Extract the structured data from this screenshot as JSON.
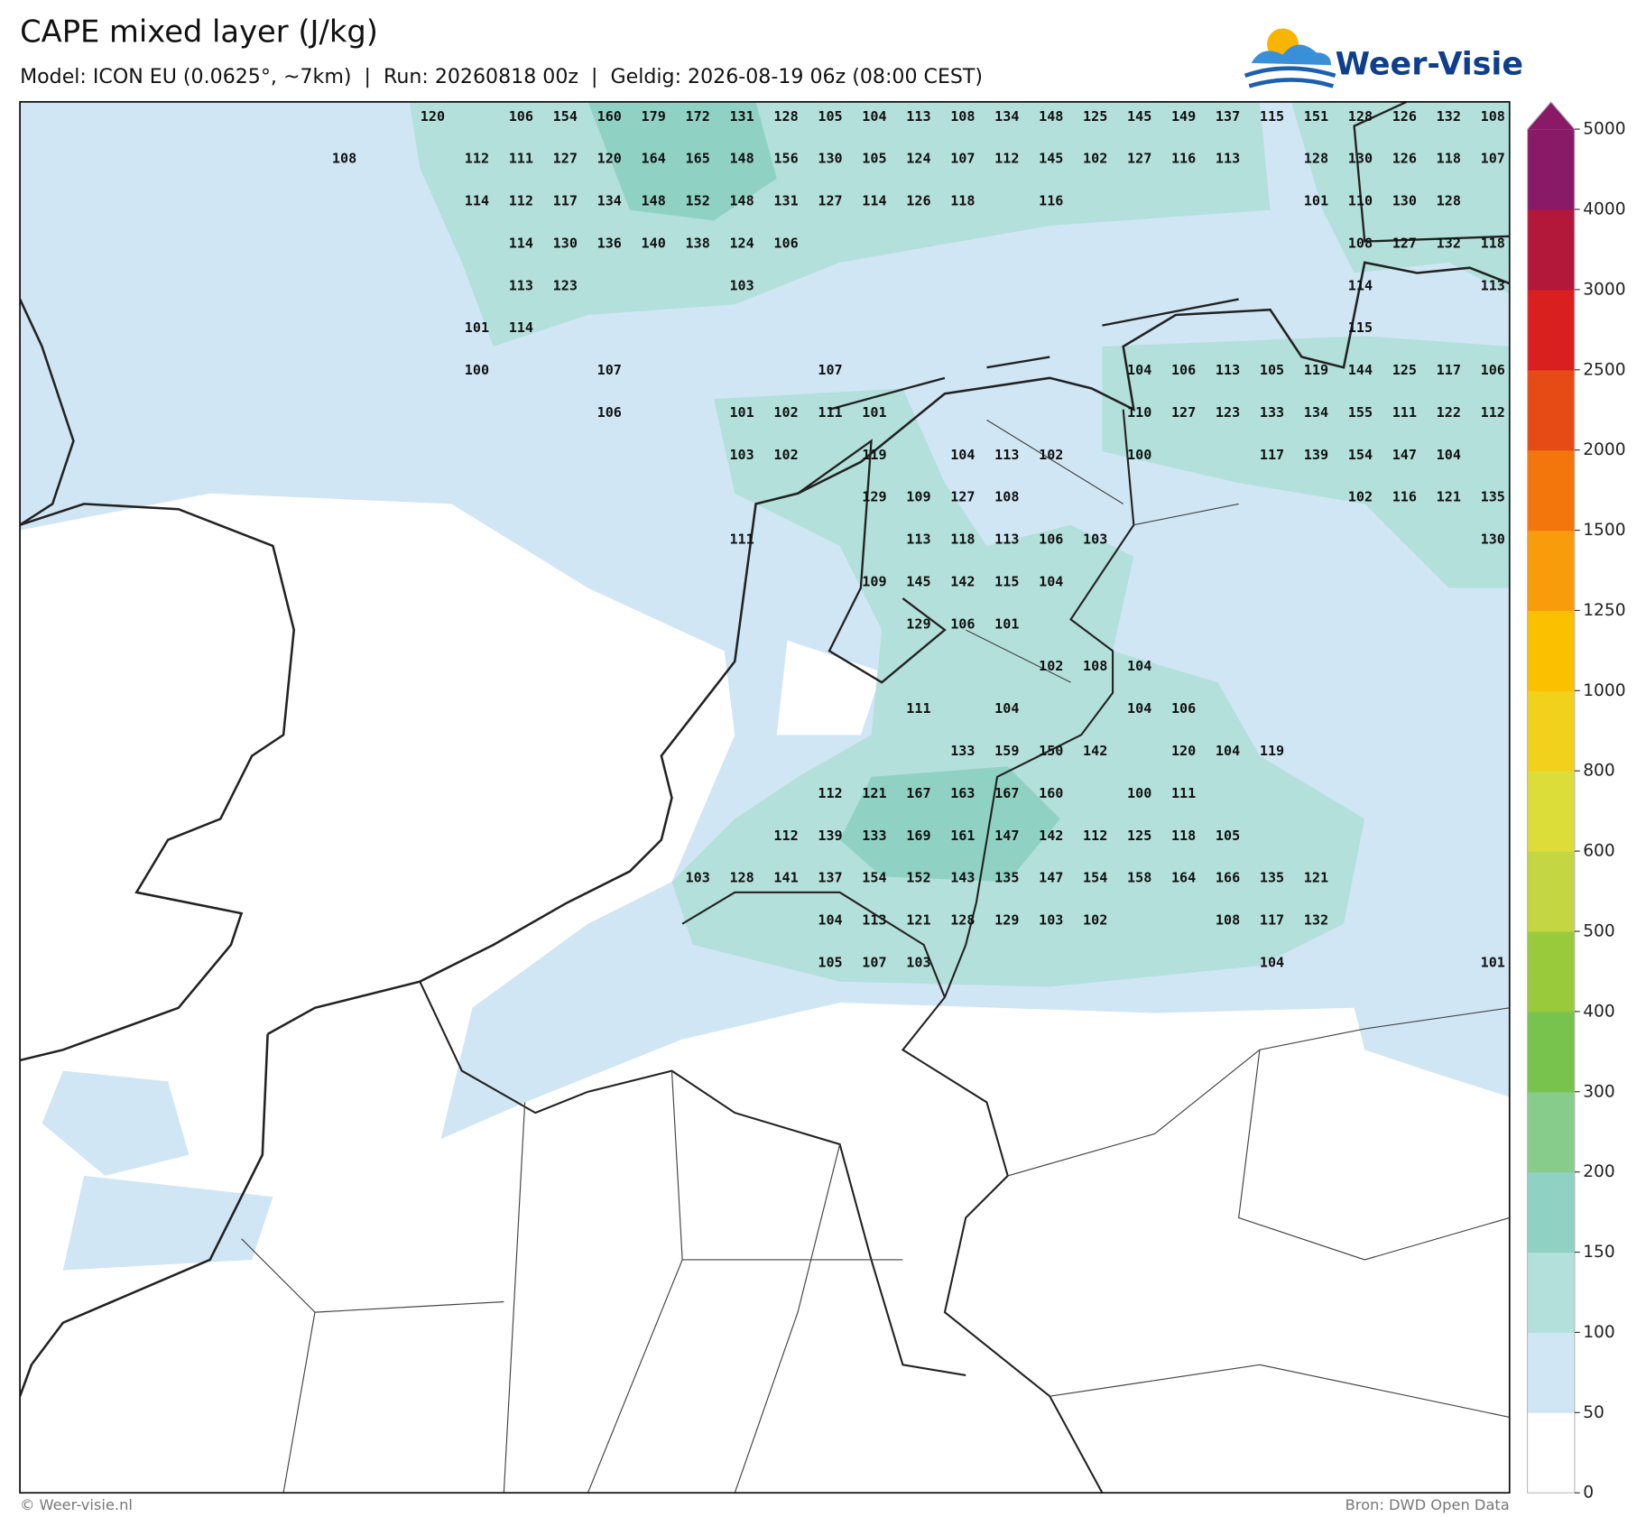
{
  "header": {
    "title": "CAPE mixed layer (J/kg)",
    "subtitle": "Model: ICON EU (0.0625°, ~7km)  |  Run: 20260818 00z  |  Geldig: 2026-08-19 06z (08:00 CEST)",
    "logo": "Weer-Visie"
  },
  "footer": {
    "left": "© Weer-visie.nl",
    "right": "Bron: DWD Open Data"
  },
  "colorbar": {
    "levels": [
      0,
      50,
      100,
      150,
      200,
      300,
      400,
      500,
      600,
      800,
      1000,
      1250,
      1500,
      2000,
      2500,
      3000,
      4000,
      5000
    ],
    "colors": [
      "#ffffff",
      "#d0e6f5",
      "#b3e0db",
      "#8fd2c4",
      "#88cc8c",
      "#78c34e",
      "#99ca3c",
      "#c4d641",
      "#dddd3a",
      "#f1d11c",
      "#fbc000",
      "#f99c0c",
      "#f3760c",
      "#e64b15",
      "#da1f1f",
      "#b3183b",
      "#891a67"
    ]
  },
  "grid_labels": [
    [
      null,
      null,
      120,
      null,
      106,
      154,
      160,
      179,
      172,
      131,
      128,
      105,
      104,
      113,
      108,
      134,
      148,
      125,
      145,
      149,
      137,
      115,
      151,
      128,
      126,
      132,
      108
    ],
    [
      108,
      null,
      null,
      112,
      111,
      127,
      120,
      164,
      165,
      148,
      156,
      130,
      105,
      124,
      107,
      112,
      145,
      102,
      127,
      116,
      113,
      null,
      128,
      130,
      126,
      118,
      107
    ],
    [
      null,
      null,
      null,
      114,
      112,
      117,
      134,
      148,
      152,
      148,
      131,
      127,
      114,
      126,
      118,
      null,
      116,
      null,
      null,
      null,
      null,
      null,
      101,
      110,
      130,
      128,
      null
    ],
    [
      null,
      null,
      null,
      null,
      114,
      130,
      136,
      140,
      138,
      124,
      106,
      null,
      null,
      null,
      null,
      null,
      null,
      null,
      null,
      null,
      null,
      null,
      null,
      108,
      127,
      132,
      118
    ],
    [
      null,
      null,
      null,
      null,
      113,
      123,
      null,
      null,
      null,
      103,
      null,
      null,
      null,
      null,
      null,
      null,
      null,
      null,
      null,
      null,
      null,
      null,
      null,
      114,
      null,
      null,
      113
    ],
    [
      null,
      null,
      null,
      101,
      114,
      null,
      null,
      null,
      null,
      null,
      null,
      null,
      null,
      null,
      null,
      null,
      null,
      null,
      null,
      null,
      null,
      null,
      null,
      115,
      null,
      null,
      null
    ],
    [
      null,
      null,
      null,
      100,
      null,
      null,
      107,
      null,
      null,
      null,
      null,
      107,
      null,
      null,
      null,
      null,
      null,
      null,
      104,
      106,
      113,
      105,
      119,
      144,
      125,
      117,
      106
    ],
    [
      null,
      null,
      null,
      null,
      null,
      null,
      106,
      null,
      null,
      101,
      102,
      111,
      101,
      null,
      null,
      null,
      null,
      null,
      110,
      127,
      123,
      133,
      134,
      155,
      111,
      122,
      112
    ],
    [
      null,
      null,
      null,
      null,
      null,
      null,
      null,
      null,
      null,
      103,
      102,
      null,
      119,
      null,
      104,
      113,
      102,
      null,
      100,
      null,
      null,
      117,
      139,
      154,
      147,
      104,
      null
    ],
    [
      null,
      null,
      null,
      null,
      null,
      null,
      null,
      null,
      null,
      null,
      null,
      null,
      129,
      109,
      127,
      108,
      null,
      null,
      null,
      null,
      null,
      null,
      null,
      102,
      116,
      121,
      135
    ],
    [
      null,
      null,
      null,
      null,
      null,
      null,
      null,
      null,
      null,
      111,
      null,
      null,
      null,
      113,
      118,
      113,
      106,
      103,
      null,
      null,
      null,
      null,
      null,
      null,
      null,
      null,
      130
    ],
    [
      null,
      null,
      null,
      null,
      null,
      null,
      null,
      null,
      null,
      null,
      null,
      null,
      109,
      145,
      142,
      115,
      104,
      null,
      null,
      null,
      null,
      null,
      null,
      null,
      null,
      null,
      null
    ],
    [
      null,
      null,
      null,
      null,
      null,
      null,
      null,
      null,
      null,
      null,
      null,
      null,
      null,
      129,
      106,
      101,
      null,
      null,
      null,
      null,
      null,
      null,
      null,
      null,
      null,
      null,
      null
    ],
    [
      null,
      null,
      null,
      null,
      null,
      null,
      null,
      null,
      null,
      null,
      null,
      null,
      null,
      null,
      null,
      null,
      102,
      108,
      104,
      null,
      null,
      null,
      null,
      null,
      null,
      null,
      null
    ],
    [
      null,
      null,
      null,
      null,
      null,
      null,
      null,
      null,
      null,
      null,
      null,
      null,
      null,
      111,
      null,
      104,
      null,
      null,
      104,
      106,
      null,
      null,
      null,
      null,
      null,
      null,
      null
    ],
    [
      null,
      null,
      null,
      null,
      null,
      null,
      null,
      null,
      null,
      null,
      null,
      null,
      null,
      null,
      133,
      159,
      150,
      142,
      null,
      120,
      104,
      119,
      null,
      null,
      null,
      null,
      null
    ],
    [
      null,
      null,
      null,
      null,
      null,
      null,
      null,
      null,
      null,
      null,
      null,
      112,
      121,
      167,
      163,
      167,
      160,
      null,
      100,
      111,
      null,
      null,
      null,
      null,
      null,
      null,
      null
    ],
    [
      null,
      null,
      null,
      null,
      null,
      null,
      null,
      null,
      null,
      null,
      112,
      139,
      133,
      169,
      161,
      147,
      142,
      112,
      125,
      118,
      105,
      null,
      null,
      null,
      null,
      null,
      null
    ],
    [
      null,
      null,
      null,
      null,
      null,
      null,
      null,
      null,
      103,
      128,
      141,
      137,
      154,
      152,
      143,
      135,
      147,
      154,
      158,
      164,
      166,
      135,
      121,
      null,
      null,
      null,
      null
    ],
    [
      null,
      null,
      null,
      null,
      null,
      null,
      null,
      null,
      null,
      null,
      null,
      104,
      113,
      121,
      128,
      129,
      103,
      102,
      null,
      null,
      108,
      117,
      132,
      null,
      null,
      null,
      null
    ],
    [
      null,
      null,
      null,
      null,
      null,
      null,
      null,
      null,
      null,
      null,
      null,
      105,
      107,
      103,
      null,
      null,
      null,
      null,
      null,
      null,
      null,
      104,
      null,
      null,
      null,
      null,
      101
    ]
  ]
}
